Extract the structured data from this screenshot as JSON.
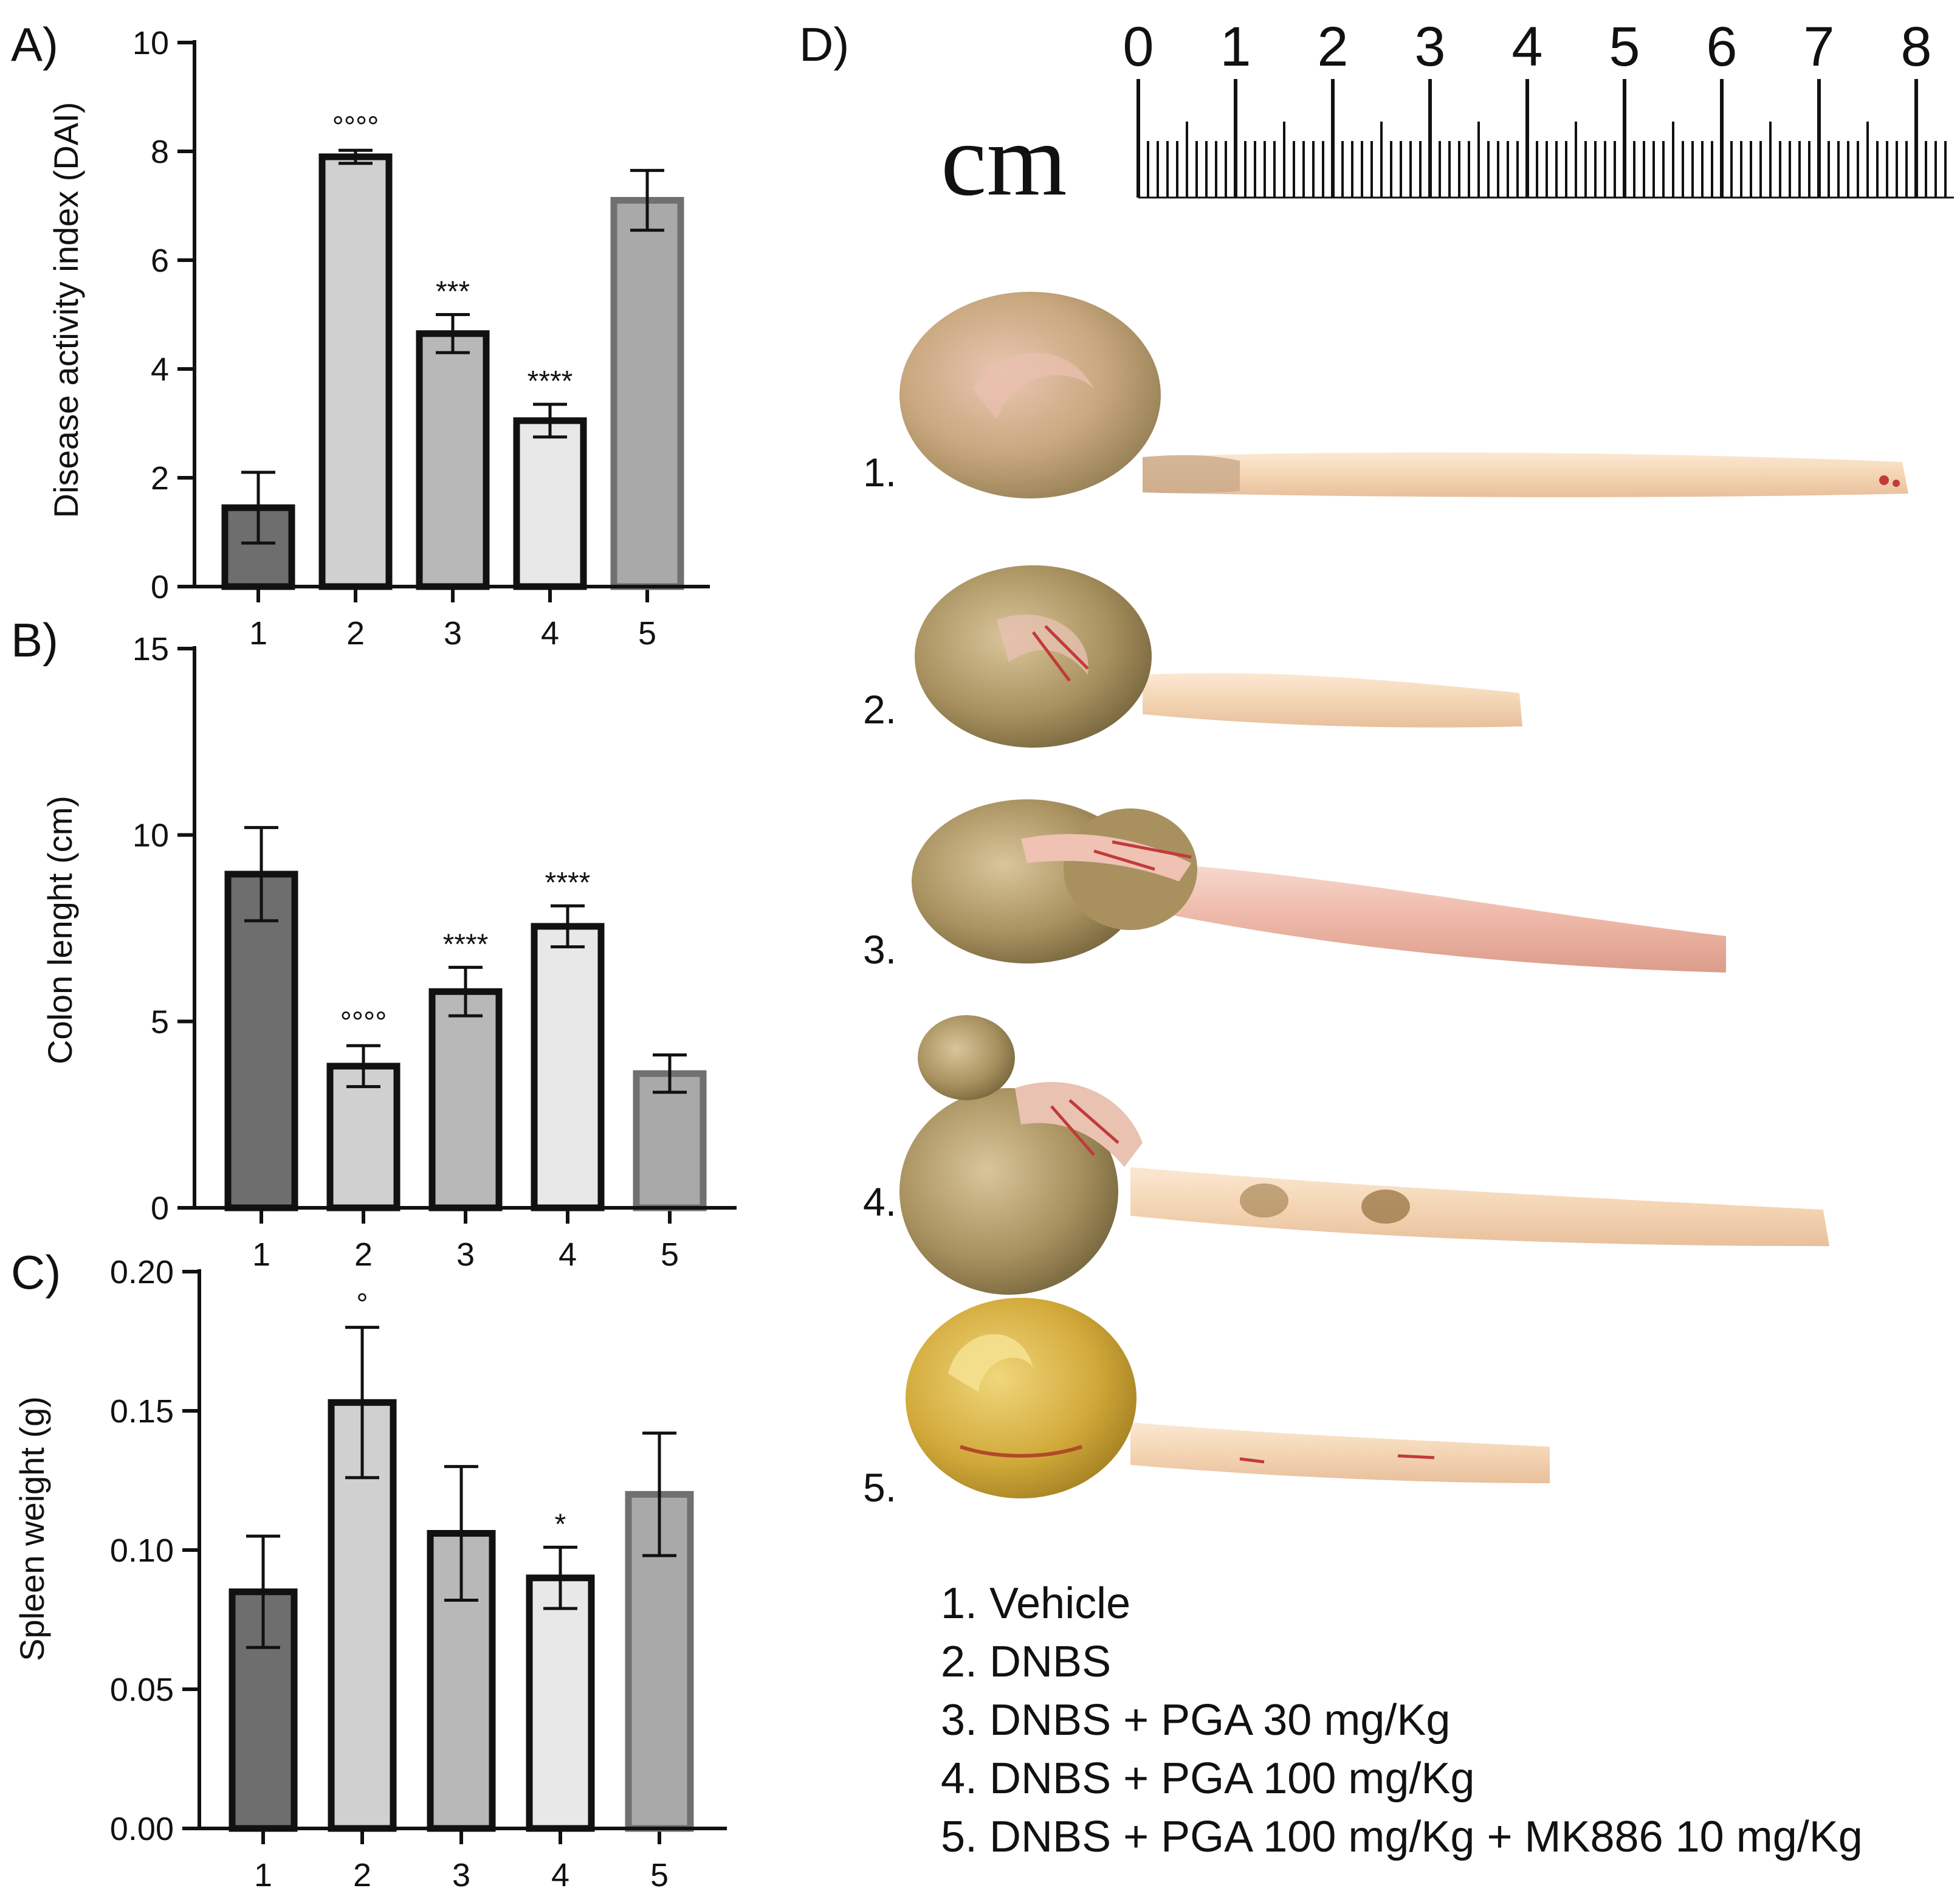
{
  "colors": {
    "g1": "#6e6e6e",
    "g2": "#d0d0d0",
    "g3": "#b8b8b8",
    "g4": "#e8e8e8",
    "g5": "#a9a9a9",
    "edge": "#111111",
    "edge5": "#707070"
  },
  "chart_data": [
    {
      "panel": "A)",
      "type": "bar",
      "categories": [
        "1",
        "2",
        "3",
        "4",
        "5"
      ],
      "values": [
        1.45,
        7.9,
        4.65,
        3.05,
        7.1
      ],
      "errors": [
        0.65,
        0.12,
        0.35,
        0.3,
        0.55
      ],
      "ylabel": "Disease activity index (DAI)",
      "ylim": [
        0,
        10
      ],
      "yticks": [
        "0",
        "2",
        "4",
        "6",
        "8",
        "10"
      ],
      "significance": [
        "",
        "°°°°",
        "***",
        "****",
        ""
      ]
    },
    {
      "panel": "B)",
      "type": "bar",
      "categories": [
        "1",
        "2",
        "3",
        "4",
        "5"
      ],
      "values": [
        8.95,
        3.8,
        5.8,
        7.55,
        3.6
      ],
      "errors": [
        1.25,
        0.55,
        0.65,
        0.55,
        0.5
      ],
      "ylabel": "Colon lenght (cm)",
      "ylim": [
        0,
        15
      ],
      "yticks": [
        "0",
        "5",
        "10",
        "15"
      ],
      "significance": [
        "",
        "°°°°",
        "****",
        "****",
        ""
      ]
    },
    {
      "panel": "C)",
      "type": "bar",
      "categories": [
        "1",
        "2",
        "3",
        "4",
        "5"
      ],
      "values": [
        0.085,
        0.153,
        0.106,
        0.09,
        0.12
      ],
      "errors": [
        0.02,
        0.027,
        0.024,
        0.011,
        0.022
      ],
      "ylabel": "Spleen weight (g)",
      "ylim": [
        0,
        0.2
      ],
      "yticks": [
        "0.00",
        "0.05",
        "0.10",
        "0.15",
        "0.20"
      ],
      "significance": [
        "",
        "°",
        "",
        "*",
        ""
      ]
    }
  ],
  "photo": {
    "panel": "D)",
    "ruler": {
      "unit": "cm",
      "labels": [
        "0",
        "1",
        "2",
        "3",
        "4",
        "5",
        "6",
        "7",
        "8"
      ]
    },
    "specimen_labels": [
      "1.",
      "2.",
      "3.",
      "4.",
      "5."
    ]
  },
  "legend": [
    "1. Vehicle",
    "2. DNBS",
    "3. DNBS + PGA 30 mg/Kg",
    "4. DNBS + PGA 100 mg/Kg",
    "5. DNBS + PGA 100 mg/Kg + MK886 10 mg/Kg"
  ]
}
